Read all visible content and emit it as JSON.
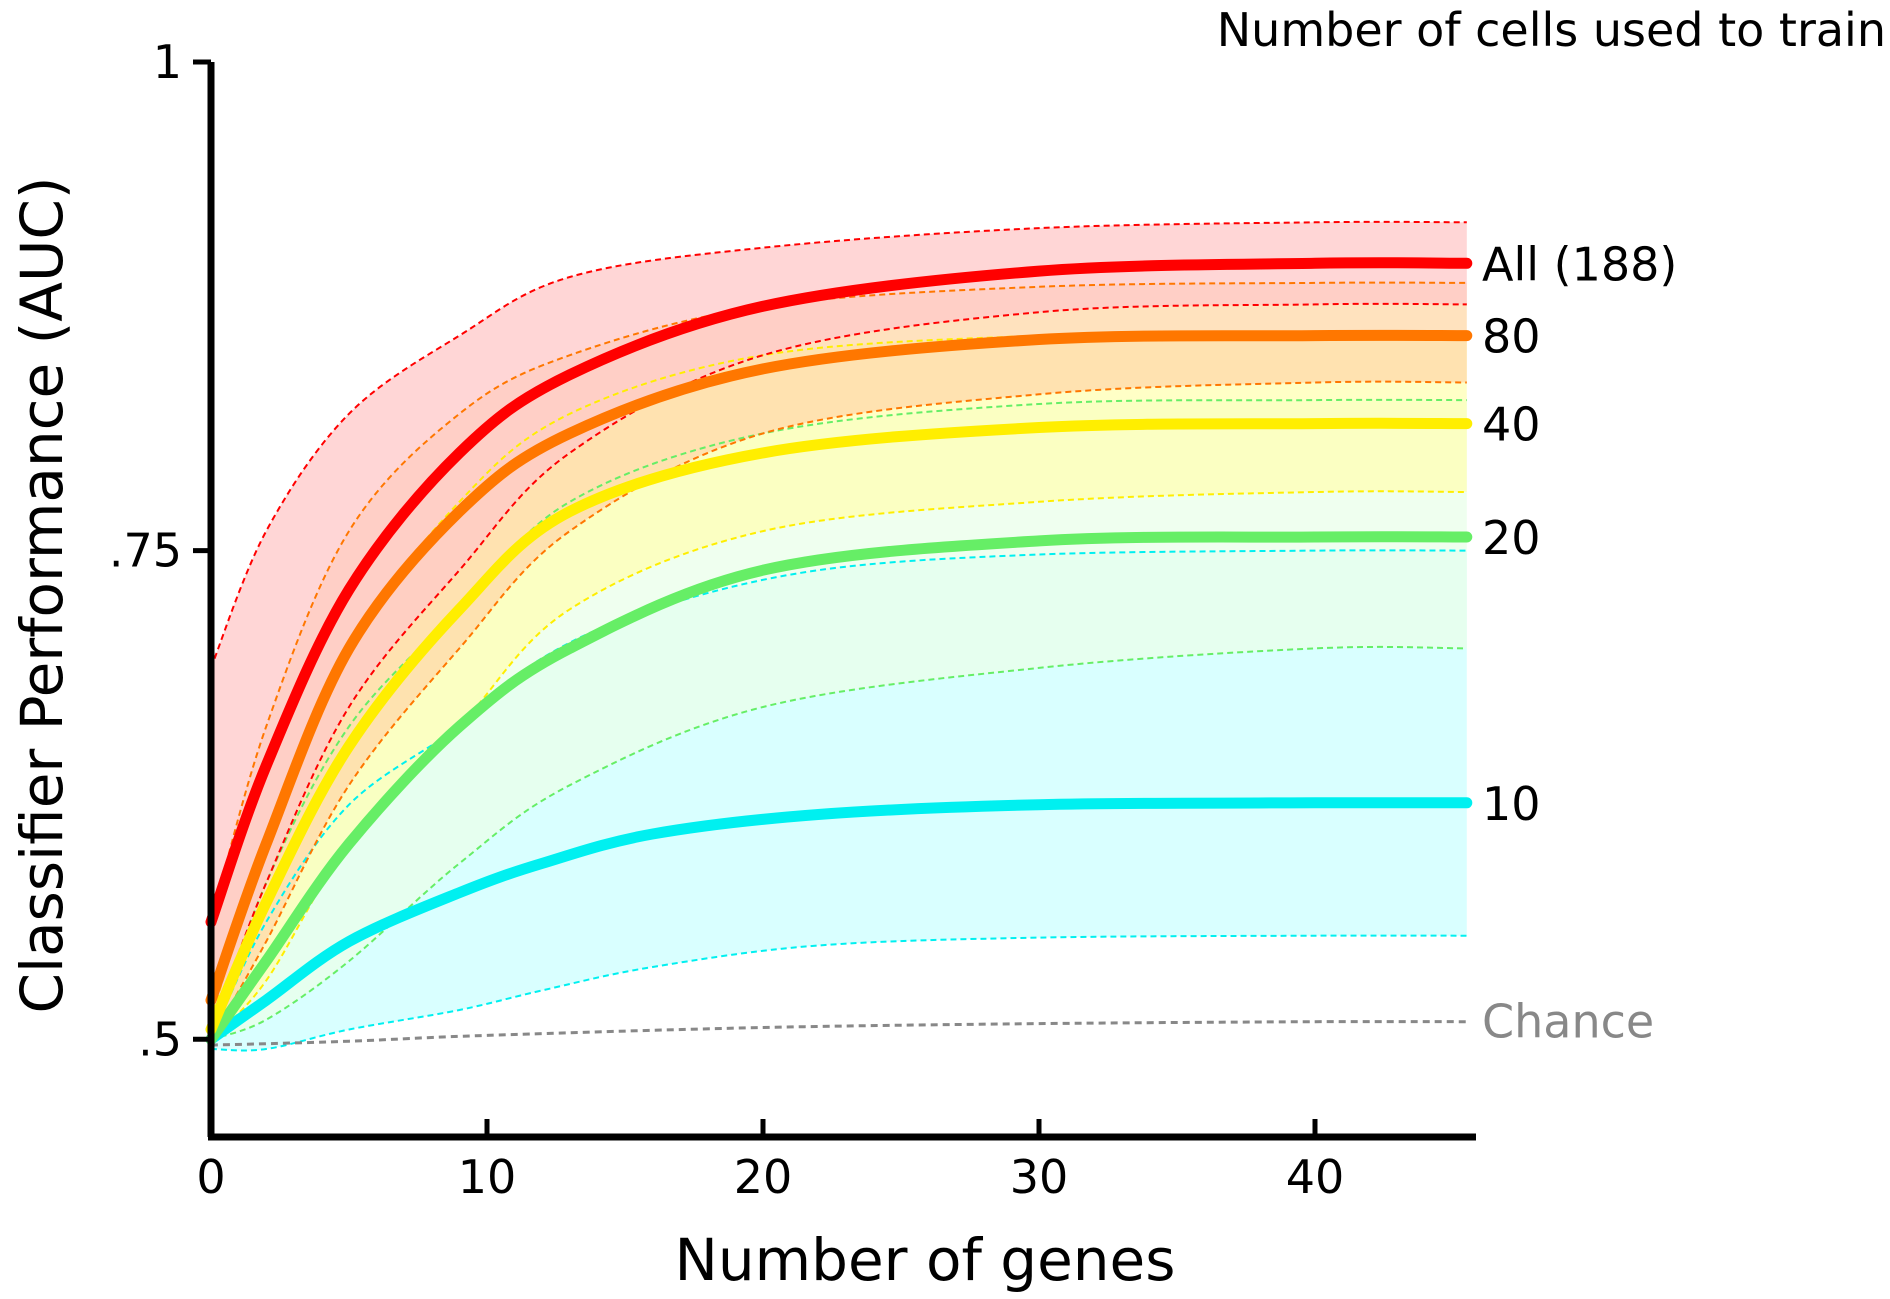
{
  "chart_data": {
    "type": "line",
    "title": "",
    "xlabel": "Number of genes",
    "ylabel": "Classifier Performance (AUC)",
    "xlim": [
      0,
      46
    ],
    "ylim": [
      0.45,
      1.0
    ],
    "x_ticks": [
      0,
      10,
      20,
      30,
      40
    ],
    "x_tick_labels": [
      "0",
      "10",
      "20",
      "30",
      "40"
    ],
    "y_ticks": [
      0.5,
      0.75,
      1.0
    ],
    "y_tick_labels": [
      ".5",
      ".75",
      "1"
    ],
    "legend_title": "Number of cells used to train",
    "grid": false,
    "series": [
      {
        "name": "10",
        "color": "#00f0f0",
        "fill": "#ccffff",
        "x": [
          0,
          2,
          5,
          9,
          12,
          16,
          22,
          30,
          40,
          45.5
        ],
        "y": [
          0.5,
          0.52,
          0.55,
          0.575,
          0.59,
          0.605,
          0.615,
          0.62,
          0.621,
          0.621
        ],
        "upper": [
          0.5,
          0.56,
          0.62,
          0.66,
          0.695,
          0.72,
          0.74,
          0.748,
          0.75,
          0.75
        ],
        "lower": [
          0.495,
          0.495,
          0.505,
          0.515,
          0.525,
          0.537,
          0.548,
          0.552,
          0.553,
          0.553
        ]
      },
      {
        "name": "20",
        "color": "#66ee66",
        "fill": "#eaffea",
        "x": [
          0,
          2,
          5,
          9,
          13,
          20,
          30,
          40,
          45.5
        ],
        "y": [
          0.5,
          0.54,
          0.6,
          0.66,
          0.7,
          0.74,
          0.755,
          0.757,
          0.757
        ],
        "upper": [
          0.5,
          0.58,
          0.66,
          0.72,
          0.775,
          0.81,
          0.825,
          0.827,
          0.827
        ],
        "lower": [
          0.5,
          0.51,
          0.54,
          0.59,
          0.63,
          0.67,
          0.69,
          0.7,
          0.7
        ]
      },
      {
        "name": "40",
        "color": "#ffee00",
        "fill": "#ffffb3",
        "x": [
          0,
          2,
          5,
          9,
          13,
          20,
          30,
          40,
          45.5
        ],
        "y": [
          0.505,
          0.57,
          0.65,
          0.72,
          0.77,
          0.8,
          0.813,
          0.815,
          0.815
        ],
        "upper": [
          0.51,
          0.6,
          0.7,
          0.775,
          0.82,
          0.85,
          0.86,
          0.862,
          0.862
        ],
        "lower": [
          0.5,
          0.53,
          0.6,
          0.66,
          0.72,
          0.76,
          0.775,
          0.78,
          0.78
        ]
      },
      {
        "name": "80",
        "color": "#ff7700",
        "fill": "#ffd8a8",
        "x": [
          0,
          2,
          5,
          9,
          13,
          20,
          30,
          40,
          45.5
        ],
        "y": [
          0.52,
          0.6,
          0.7,
          0.77,
          0.81,
          0.843,
          0.858,
          0.86,
          0.86
        ],
        "upper": [
          0.56,
          0.66,
          0.76,
          0.82,
          0.85,
          0.875,
          0.885,
          0.887,
          0.887
        ],
        "lower": [
          0.5,
          0.55,
          0.63,
          0.7,
          0.76,
          0.81,
          0.83,
          0.836,
          0.836
        ]
      },
      {
        "name": "All (188)",
        "color": "#ff0000",
        "fill": "#ffc8c8",
        "x": [
          0,
          2,
          5,
          9,
          13,
          20,
          30,
          40,
          45.5
        ],
        "y": [
          0.56,
          0.64,
          0.73,
          0.8,
          0.84,
          0.875,
          0.893,
          0.897,
          0.897
        ],
        "upper": [
          0.69,
          0.76,
          0.82,
          0.86,
          0.89,
          0.905,
          0.915,
          0.918,
          0.918
        ],
        "lower": [
          0.505,
          0.58,
          0.67,
          0.74,
          0.8,
          0.85,
          0.872,
          0.876,
          0.876
        ]
      }
    ],
    "chance": {
      "label": "Chance",
      "color": "#888888",
      "x": [
        0,
        5,
        10,
        20,
        30,
        40,
        45.5
      ],
      "y": [
        0.497,
        0.499,
        0.502,
        0.506,
        0.508,
        0.509,
        0.509
      ]
    }
  }
}
